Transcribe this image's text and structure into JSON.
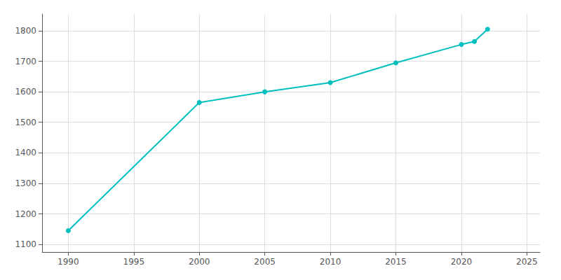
{
  "chart_data": {
    "type": "line",
    "x": [
      1990,
      2000,
      2005,
      2010,
      2015,
      2020,
      2021,
      2022
    ],
    "values": [
      1145,
      1565,
      1600,
      1630,
      1695,
      1755,
      1765,
      1805
    ],
    "color": "#00bfbf",
    "marker": "circle",
    "xlim": [
      1988,
      2026
    ],
    "xticks": [
      1990,
      1995,
      2000,
      2005,
      2010,
      2015,
      2020,
      2025
    ],
    "ylim": [
      1075,
      1855
    ],
    "yticks": [
      1100,
      1200,
      1300,
      1400,
      1500,
      1600,
      1700,
      1800
    ],
    "grid": true
  }
}
